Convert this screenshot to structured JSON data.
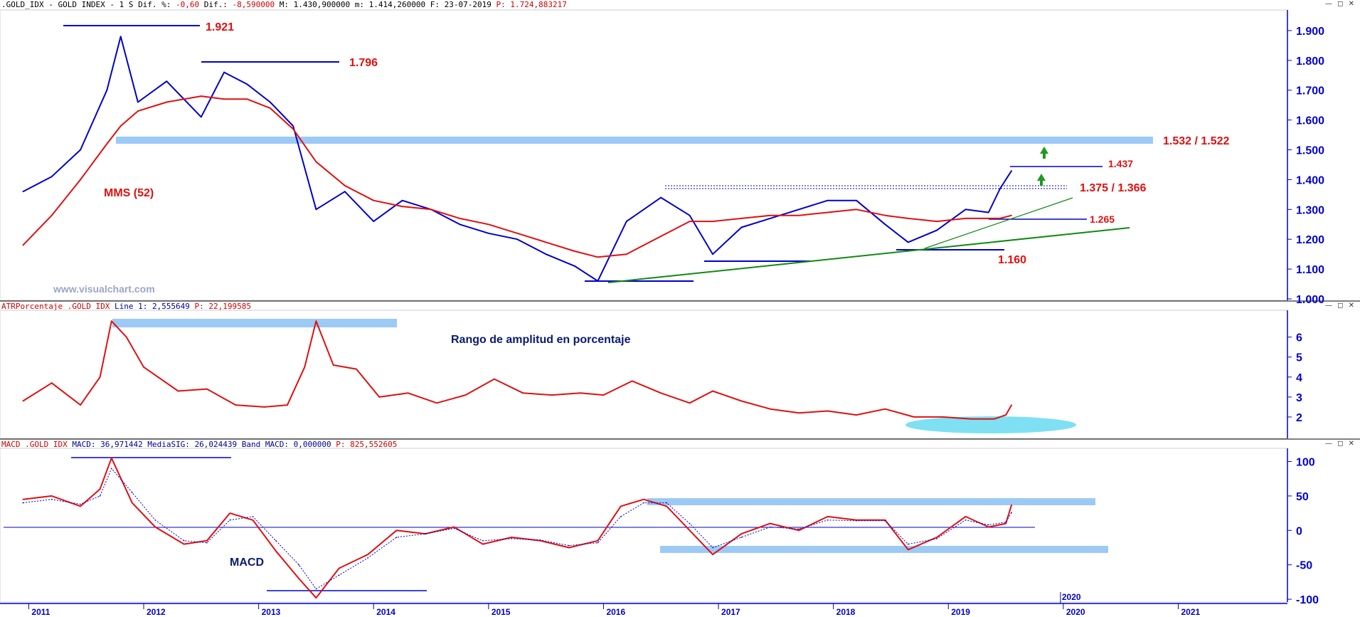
{
  "colors": {
    "price": "#0000cc",
    "mma": "#e01010",
    "axis": "#0000cc",
    "band": "#9ccaf6",
    "trend": "#108a10",
    "label_red": "#e01010",
    "label_navy": "#0a1a6e",
    "ellipse": "#7ee0f2",
    "arrow": "#1f9a1f"
  },
  "window_controls": "— ◻ ✕",
  "price_panel": {
    "header": {
      "symbol": ".GOLD_IDX - GOLD INDEX -  1 S",
      "dif_pct_label": "Dif. %:",
      "dif_pct": "-0,60",
      "dif_label": "Dif.:",
      "dif": "-8,590000",
      "max_label": "M:",
      "max": "1.430,900000",
      "min_label": "m:",
      "min": "1.414,260000",
      "date_label": "F:",
      "date": "23-07-2019",
      "p_label": "P:",
      "p": "1.724,883217"
    },
    "labels": {
      "l1921": "1.921",
      "l1796": "1.796",
      "l1532": "1.532 / 1.522",
      "l1437": "1.437",
      "l1375": "1.375 / 1.366",
      "l1265": "1.265",
      "l1160": "1.160",
      "mms": "MMS (52)",
      "watermark": "www.visualchart.com"
    },
    "y_ticks": [
      "1.900",
      "1.800",
      "1.700",
      "1.600",
      "1.500",
      "1.400",
      "1.300",
      "1.200",
      "1.100",
      "1.000"
    ]
  },
  "atr_panel": {
    "header": {
      "name": "ATRPorcentaje_.GOLD_IDX",
      "line_label": "Line 1:",
      "line": "2,555649",
      "p_label": "P:",
      "p": "22,199585"
    },
    "title": "Rango de amplitud en porcentaje",
    "y_ticks": [
      "6",
      "5",
      "4",
      "3",
      "2"
    ]
  },
  "macd_panel": {
    "header": {
      "name": "MACD_.GOLD_IDX",
      "macd_label": "MACD:",
      "macd": "36,971442",
      "sig_label": "MediaSIG:",
      "sig": "26,024439",
      "band_label": "Band_MACD:",
      "band": "0,000000",
      "p_label": "P:",
      "p": "825,552605"
    },
    "label": "MACD",
    "y_ticks": [
      "100",
      "50",
      "0",
      "-50",
      "-100"
    ]
  },
  "x_axis": {
    "ticks": [
      "2011",
      "2012",
      "2013",
      "2014",
      "2015",
      "2016",
      "2017",
      "2018",
      "2019",
      "2020",
      "2021"
    ],
    "extra_label": "2020"
  },
  "chart_data": [
    {
      "type": "line",
      "panel": "price",
      "x": [
        2010.95,
        2011.2,
        2011.45,
        2011.68,
        2011.8,
        2011.95,
        2012.2,
        2012.5,
        2012.7,
        2012.9,
        2013.1,
        2013.3,
        2013.5,
        2013.75,
        2014.0,
        2014.25,
        2014.5,
        2014.75,
        2015.0,
        2015.25,
        2015.5,
        2015.75,
        2015.95,
        2016.2,
        2016.5,
        2016.75,
        2016.95,
        2017.2,
        2017.45,
        2017.7,
        2017.95,
        2018.2,
        2018.45,
        2018.65,
        2018.9,
        2019.15,
        2019.35,
        2019.45,
        2019.55
      ],
      "series": [
        {
          "name": "GOLD_IDX",
          "values": [
            1.36,
            1.41,
            1.5,
            1.7,
            1.88,
            1.66,
            1.73,
            1.61,
            1.76,
            1.72,
            1.66,
            1.58,
            1.3,
            1.36,
            1.26,
            1.33,
            1.3,
            1.25,
            1.22,
            1.2,
            1.15,
            1.11,
            1.06,
            1.26,
            1.34,
            1.28,
            1.15,
            1.24,
            1.27,
            1.3,
            1.33,
            1.33,
            1.25,
            1.19,
            1.23,
            1.3,
            1.29,
            1.37,
            1.43
          ]
        },
        {
          "name": "MMS (52)",
          "values": [
            1.18,
            1.28,
            1.4,
            1.52,
            1.58,
            1.63,
            1.66,
            1.68,
            1.67,
            1.67,
            1.64,
            1.57,
            1.46,
            1.38,
            1.33,
            1.31,
            1.3,
            1.27,
            1.25,
            1.22,
            1.19,
            1.16,
            1.14,
            1.15,
            1.21,
            1.26,
            1.26,
            1.27,
            1.28,
            1.28,
            1.29,
            1.3,
            1.28,
            1.27,
            1.26,
            1.27,
            1.27,
            1.27,
            1.28
          ]
        }
      ],
      "annotations": [
        "1.921",
        "1.796",
        "1.532 / 1.522",
        "1.437",
        "1.375 / 1.366",
        "1.265",
        "1.160",
        "MMS (52)"
      ],
      "ylim": [
        1.0,
        1.95
      ],
      "xlim": [
        2010.75,
        2021.95
      ],
      "grid": false
    },
    {
      "type": "line",
      "panel": "atr",
      "x": [
        2010.95,
        2011.2,
        2011.45,
        2011.62,
        2011.72,
        2011.85,
        2012.0,
        2012.3,
        2012.55,
        2012.8,
        2013.05,
        2013.25,
        2013.4,
        2013.5,
        2013.65,
        2013.85,
        2014.05,
        2014.3,
        2014.55,
        2014.8,
        2015.05,
        2015.3,
        2015.55,
        2015.8,
        2016.0,
        2016.25,
        2016.5,
        2016.75,
        2016.95,
        2017.2,
        2017.45,
        2017.7,
        2017.95,
        2018.2,
        2018.45,
        2018.7,
        2018.95,
        2019.2,
        2019.4,
        2019.5,
        2019.55
      ],
      "series": [
        {
          "name": "ATRPorcentaje",
          "values": [
            2.8,
            3.7,
            2.6,
            4.0,
            6.8,
            6.0,
            4.5,
            3.3,
            3.4,
            2.6,
            2.5,
            2.6,
            4.5,
            6.8,
            4.6,
            4.4,
            3.0,
            3.2,
            2.7,
            3.1,
            3.9,
            3.2,
            3.1,
            3.2,
            3.1,
            3.8,
            3.2,
            2.7,
            3.3,
            2.8,
            2.4,
            2.2,
            2.3,
            2.1,
            2.4,
            2.0,
            2.0,
            1.9,
            1.9,
            2.1,
            2.6
          ]
        }
      ],
      "title": "Rango de amplitud en porcentaje",
      "ylim": [
        1.0,
        7.2
      ],
      "grid": false
    },
    {
      "type": "line",
      "panel": "macd",
      "x": [
        2010.95,
        2011.2,
        2011.45,
        2011.62,
        2011.72,
        2011.9,
        2012.1,
        2012.35,
        2012.55,
        2012.75,
        2012.95,
        2013.15,
        2013.35,
        2013.5,
        2013.7,
        2013.95,
        2014.2,
        2014.45,
        2014.7,
        2014.95,
        2015.2,
        2015.45,
        2015.7,
        2015.95,
        2016.15,
        2016.35,
        2016.55,
        2016.75,
        2016.95,
        2017.2,
        2017.45,
        2017.7,
        2017.95,
        2018.2,
        2018.45,
        2018.65,
        2018.9,
        2019.15,
        2019.35,
        2019.5,
        2019.55
      ],
      "series": [
        {
          "name": "MACD",
          "values": [
            45,
            50,
            35,
            60,
            105,
            40,
            5,
            -20,
            -15,
            25,
            15,
            -30,
            -70,
            -98,
            -55,
            -35,
            0,
            -5,
            5,
            -20,
            -10,
            -15,
            -25,
            -15,
            35,
            45,
            35,
            0,
            -35,
            -5,
            10,
            0,
            20,
            15,
            15,
            -28,
            -10,
            20,
            5,
            10,
            37
          ]
        },
        {
          "name": "MediaSIG",
          "values": [
            40,
            45,
            38,
            50,
            90,
            55,
            15,
            -15,
            -18,
            15,
            20,
            -15,
            -50,
            -85,
            -65,
            -40,
            -10,
            -5,
            3,
            -15,
            -12,
            -14,
            -22,
            -18,
            20,
            40,
            40,
            10,
            -25,
            -10,
            5,
            2,
            15,
            14,
            14,
            -20,
            -12,
            15,
            8,
            12,
            26
          ]
        }
      ],
      "label": "MACD",
      "ylim": [
        -102,
        115
      ],
      "grid": false
    }
  ]
}
